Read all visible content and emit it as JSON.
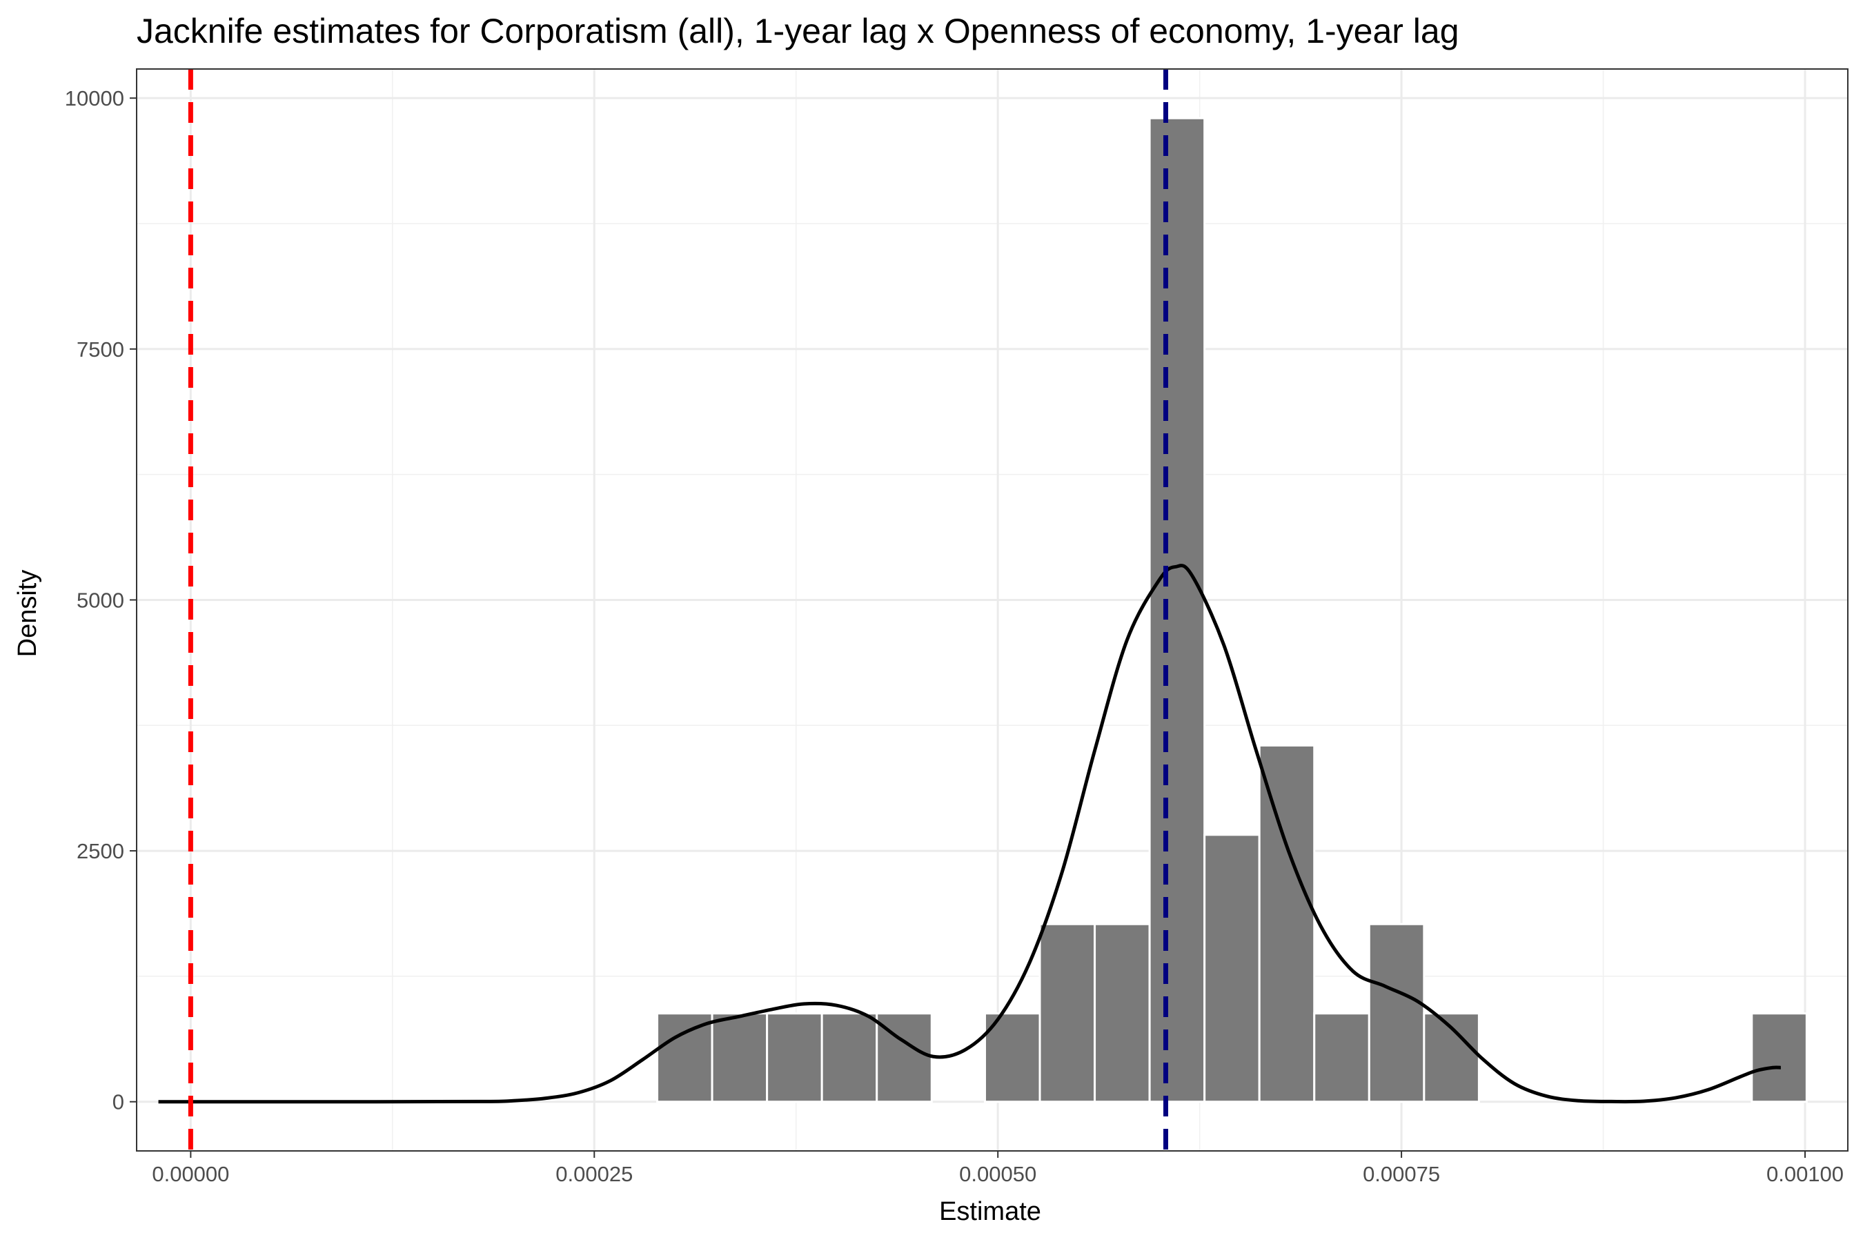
{
  "chart_data": {
    "type": "histogram",
    "title": "Jacknife estimates for Corporatism (all), 1-year lag x Openness of economy, 1-year lag",
    "xlabel": "Estimate",
    "ylabel": "Density",
    "xlim": [
      -3.35e-05,
      0.0010265
    ],
    "ylim": [
      -490,
      10290
    ],
    "x_ticks": [
      0.0,
      0.00025,
      0.0005,
      0.00075,
      0.001
    ],
    "x_tick_labels": [
      "0.00000",
      "0.00025",
      "0.00050",
      "0.00075",
      "0.00100"
    ],
    "y_ticks": [
      0,
      2500,
      5000,
      7500,
      10000
    ],
    "y_tick_labels": [
      "0",
      "2500",
      "5000",
      "7500",
      "10000"
    ],
    "grid": true,
    "bin_width": 3.39e-05,
    "bins": [
      {
        "x0": 0.000289,
        "x1": 0.000323,
        "density": 880
      },
      {
        "x0": 0.000323,
        "x1": 0.000357,
        "density": 880
      },
      {
        "x0": 0.000357,
        "x1": 0.000391,
        "density": 880
      },
      {
        "x0": 0.000391,
        "x1": 0.000425,
        "density": 880
      },
      {
        "x0": 0.000425,
        "x1": 0.000459,
        "density": 880
      },
      {
        "x0": 0.000492,
        "x1": 0.000526,
        "density": 880
      },
      {
        "x0": 0.000526,
        "x1": 0.00056,
        "density": 1770
      },
      {
        "x0": 0.00056,
        "x1": 0.000594,
        "density": 1770
      },
      {
        "x0": 0.000594,
        "x1": 0.000628,
        "density": 9800
      },
      {
        "x0": 0.000628,
        "x1": 0.000662,
        "density": 2660
      },
      {
        "x0": 0.000662,
        "x1": 0.000696,
        "density": 3550
      },
      {
        "x0": 0.000696,
        "x1": 0.00073,
        "density": 880
      },
      {
        "x0": 0.00073,
        "x1": 0.000764,
        "density": 1770
      },
      {
        "x0": 0.000764,
        "x1": 0.000798,
        "density": 880
      },
      {
        "x0": 0.000967,
        "x1": 0.001001,
        "density": 880
      }
    ],
    "density_curve": [
      [
        -2e-05,
        0
      ],
      [
        0.0,
        0
      ],
      [
        0.0001,
        0
      ],
      [
        0.00018,
        2
      ],
      [
        0.0002,
        10
      ],
      [
        0.00022,
        35
      ],
      [
        0.00024,
        90
      ],
      [
        0.00026,
        210
      ],
      [
        0.00028,
        420
      ],
      [
        0.0003,
        640
      ],
      [
        0.00032,
        780
      ],
      [
        0.00034,
        850
      ],
      [
        0.00036,
        920
      ],
      [
        0.00038,
        975
      ],
      [
        0.0004,
        960
      ],
      [
        0.00042,
        850
      ],
      [
        0.00044,
        620
      ],
      [
        0.00046,
        450
      ],
      [
        0.00048,
        520
      ],
      [
        0.0005,
        820
      ],
      [
        0.00052,
        1400
      ],
      [
        0.00054,
        2300
      ],
      [
        0.00056,
        3500
      ],
      [
        0.00058,
        4600
      ],
      [
        0.0006,
        5200
      ],
      [
        0.00061,
        5330
      ],
      [
        0.00062,
        5250
      ],
      [
        0.00064,
        4550
      ],
      [
        0.00066,
        3500
      ],
      [
        0.00068,
        2500
      ],
      [
        0.0007,
        1750
      ],
      [
        0.00072,
        1300
      ],
      [
        0.00074,
        1150
      ],
      [
        0.00076,
        1000
      ],
      [
        0.00078,
        750
      ],
      [
        0.0008,
        430
      ],
      [
        0.00082,
        180
      ],
      [
        0.00084,
        55
      ],
      [
        0.00086,
        10
      ],
      [
        0.00088,
        2
      ],
      [
        0.0009,
        5
      ],
      [
        0.00092,
        40
      ],
      [
        0.00094,
        120
      ],
      [
        0.00096,
        250
      ],
      [
        0.00097,
        310
      ],
      [
        0.00098,
        340
      ],
      [
        0.000985,
        340
      ]
    ],
    "reference_lines": [
      {
        "x": 0.0,
        "color": "#ff0000",
        "style": "dashed"
      },
      {
        "x": 0.000604,
        "color": "#000080",
        "style": "dashed"
      }
    ],
    "colors": {
      "bars": "#7a7a7a",
      "curve": "#000000"
    }
  }
}
